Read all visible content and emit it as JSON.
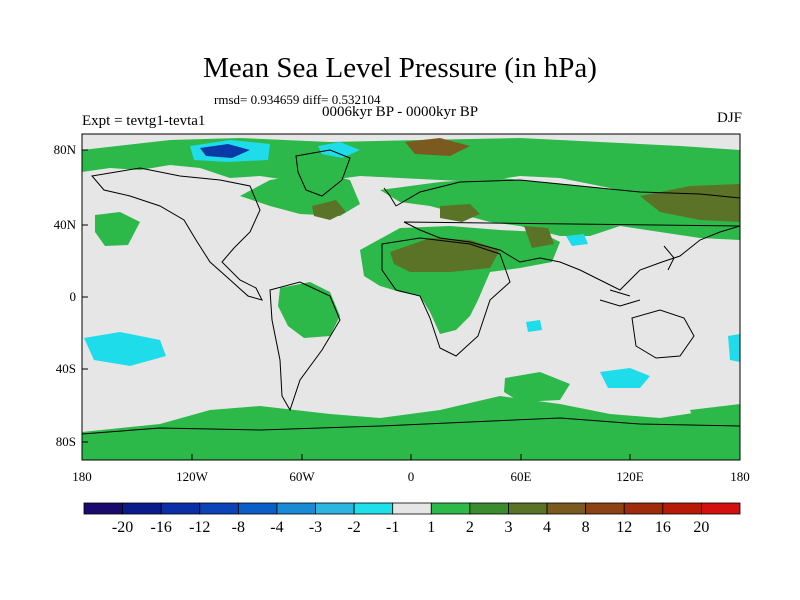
{
  "title": "Mean Sea Level Pressure (in hPa)",
  "stats": "rmsd= 0.934659 diff= 0.532104",
  "experiment": "Expt = tevtg1-tevta1",
  "period": "0006kyr BP - 0000kyr BP",
  "season": "DJF",
  "lat_ticks": [
    "80N",
    "40N",
    "0",
    "40S",
    "80S"
  ],
  "lon_ticks": [
    "180",
    "120W",
    "60W",
    "0",
    "60E",
    "120E",
    "180"
  ],
  "colorbar": {
    "labels": [
      "-20",
      "-16",
      "-12",
      "-8",
      "-4",
      "-3",
      "-2",
      "-1",
      "1",
      "2",
      "3",
      "4",
      "8",
      "12",
      "16",
      "20"
    ],
    "colors": [
      "#1a0a6e",
      "#0a1b8c",
      "#0b2fa6",
      "#0c44b8",
      "#0a5ec8",
      "#1a8ad4",
      "#2cb5e0",
      "#1fe0e8",
      "#e6e6e6",
      "#2db84a",
      "#3a8c2e",
      "#5a7326",
      "#7a5a1e",
      "#8c4214",
      "#a02a0c",
      "#b81a08",
      "#d40f0f"
    ]
  },
  "legend_palette": {
    "neutral": "#e6e6e6",
    "green": "#2db84a",
    "dark_green": "#4f8a2c",
    "olive": "#6a6a22",
    "brown": "#7a4a1e",
    "cyan": "#1fdcea",
    "blue": "#2a6ad0",
    "dark_blue": "#0a2a8c"
  }
}
